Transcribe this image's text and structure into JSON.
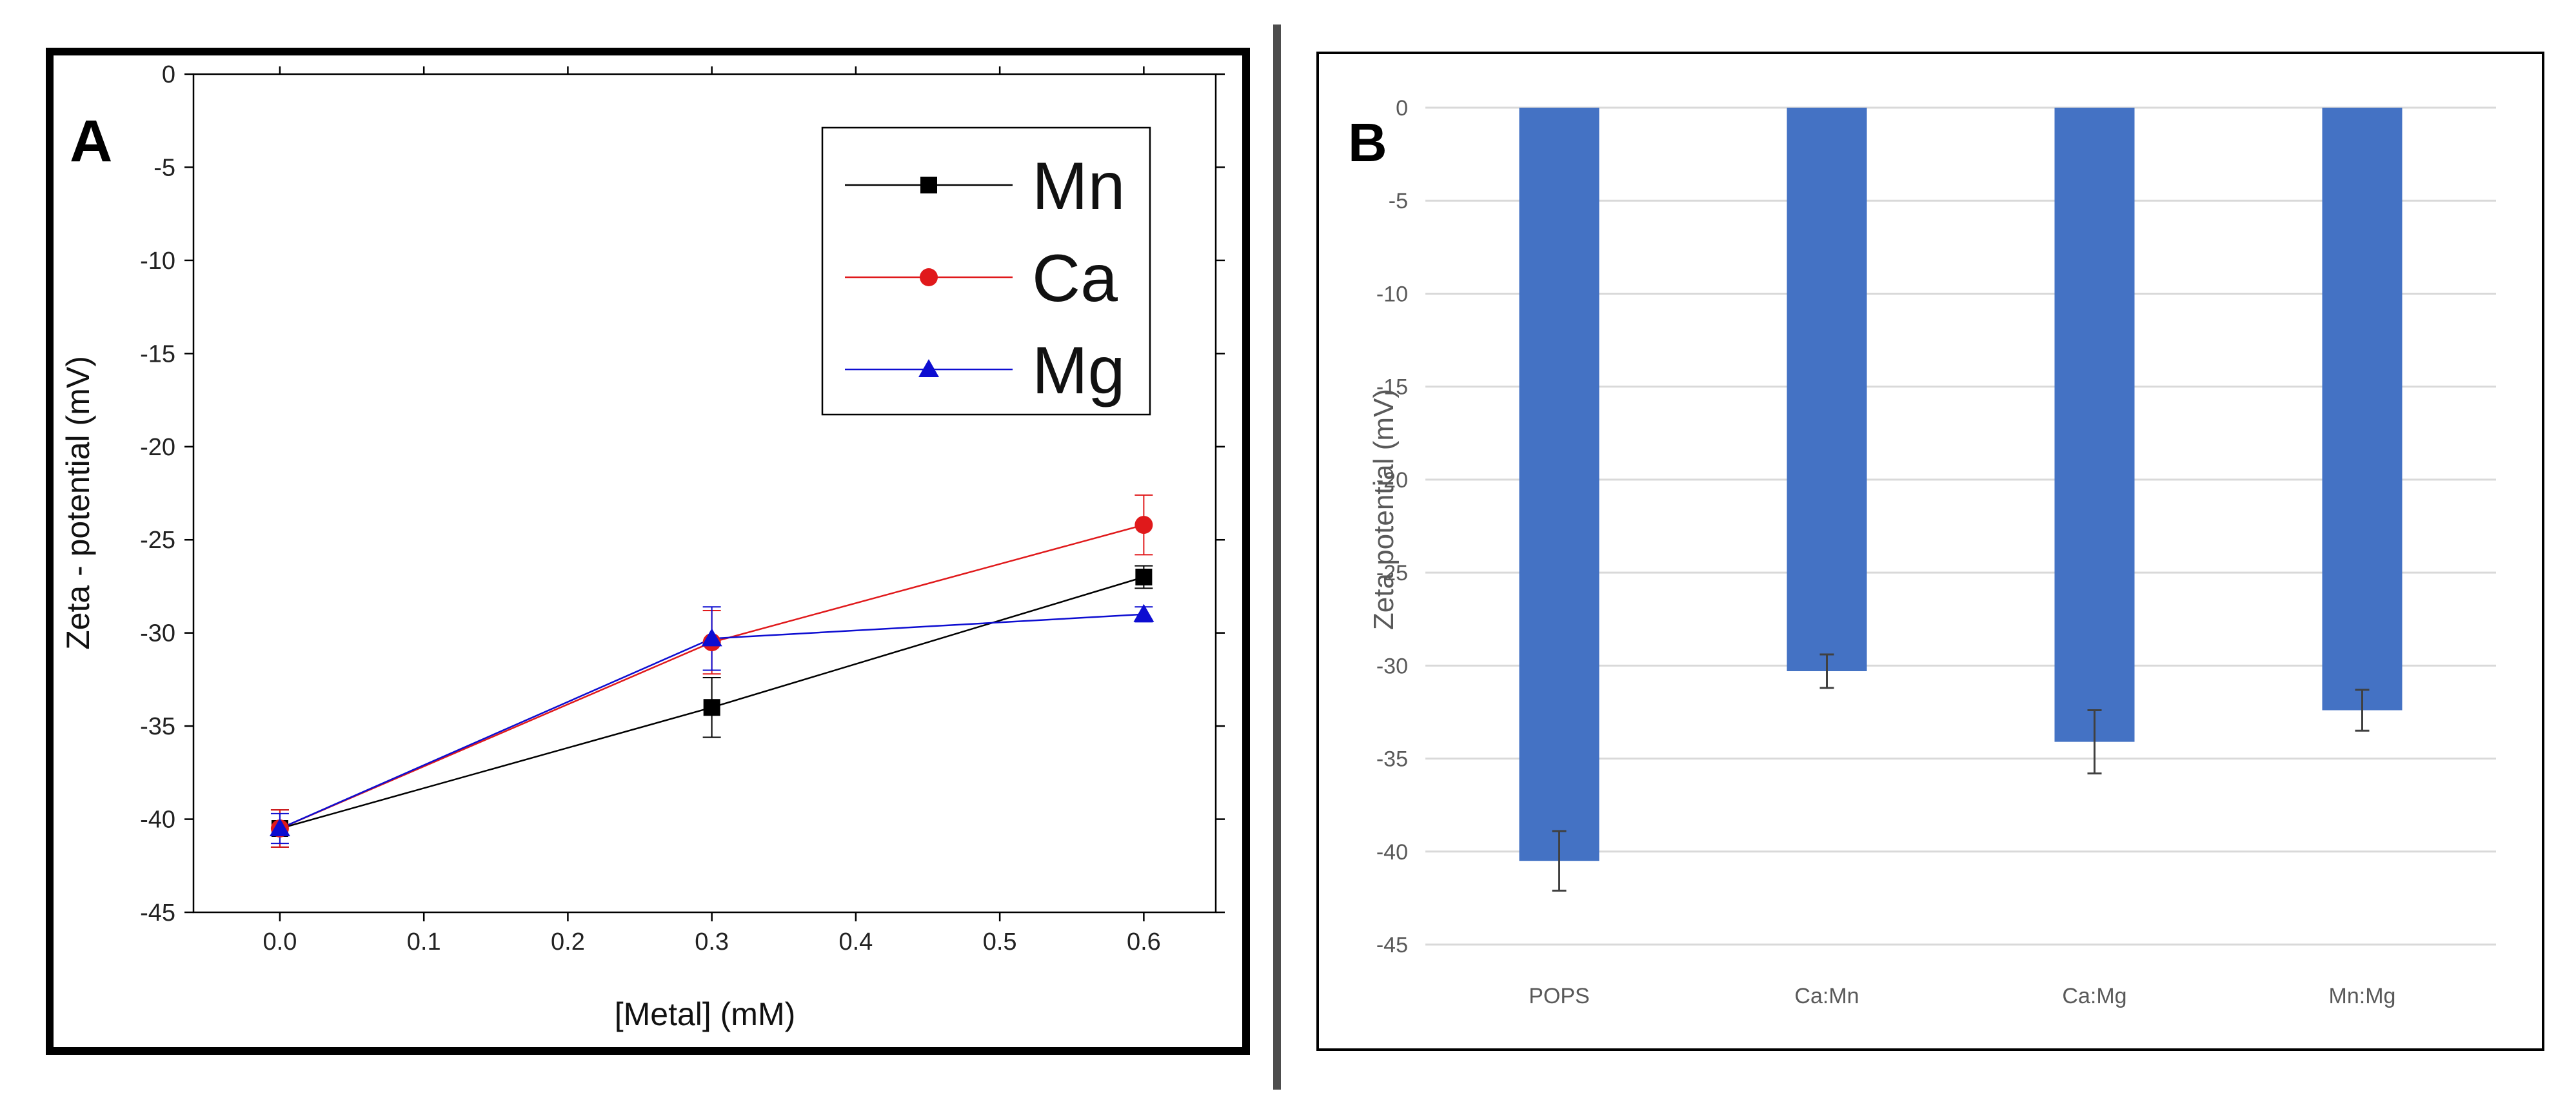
{
  "chart_data": [
    {
      "panel_label": "A",
      "type": "line",
      "xlabel": "[Metal] (mM)",
      "ylabel": "Zeta - potential (mV)",
      "xlim": [
        -0.06,
        0.65
      ],
      "ylim": [
        -45,
        0
      ],
      "x_ticks": [
        "0.0",
        "0.1",
        "0.2",
        "0.3",
        "0.4",
        "0.5",
        "0.6"
      ],
      "y_ticks": [
        "0",
        "-5",
        "-10",
        "-15",
        "-20",
        "-25",
        "-30",
        "-35",
        "-40",
        "-45"
      ],
      "legend_position": "top-right",
      "x": [
        0.0,
        0.3,
        0.6
      ],
      "series": [
        {
          "name": "Mn",
          "color": "#000000",
          "marker": "square",
          "values": [
            -40.5,
            -34.0,
            -27.0
          ],
          "errors": [
            1.0,
            1.6,
            0.6
          ]
        },
        {
          "name": "Ca",
          "color": "#e0191b",
          "marker": "circle",
          "values": [
            -40.5,
            -30.5,
            -24.2
          ],
          "errors": [
            1.0,
            1.7,
            1.6
          ]
        },
        {
          "name": "Mg",
          "color": "#0d0dd1",
          "marker": "triangle",
          "values": [
            -40.5,
            -30.3,
            -29.0
          ],
          "errors": [
            0.8,
            1.7,
            0.4
          ]
        }
      ]
    },
    {
      "panel_label": "B",
      "type": "bar",
      "ylabel": "Zeta potential (mV)",
      "ylim": [
        -45,
        0
      ],
      "y_ticks": [
        "0",
        "-5",
        "-10",
        "-15",
        "-20",
        "-25",
        "-30",
        "-35",
        "-40",
        "-45"
      ],
      "grid": true,
      "bar_color": "#4472c4",
      "categories": [
        "POPS",
        "Ca:Mn",
        "Ca:Mg",
        "Mn:Mg"
      ],
      "values": [
        -40.5,
        -30.3,
        -34.1,
        -32.4
      ],
      "errors": [
        1.6,
        0.9,
        1.7,
        1.1
      ]
    }
  ]
}
